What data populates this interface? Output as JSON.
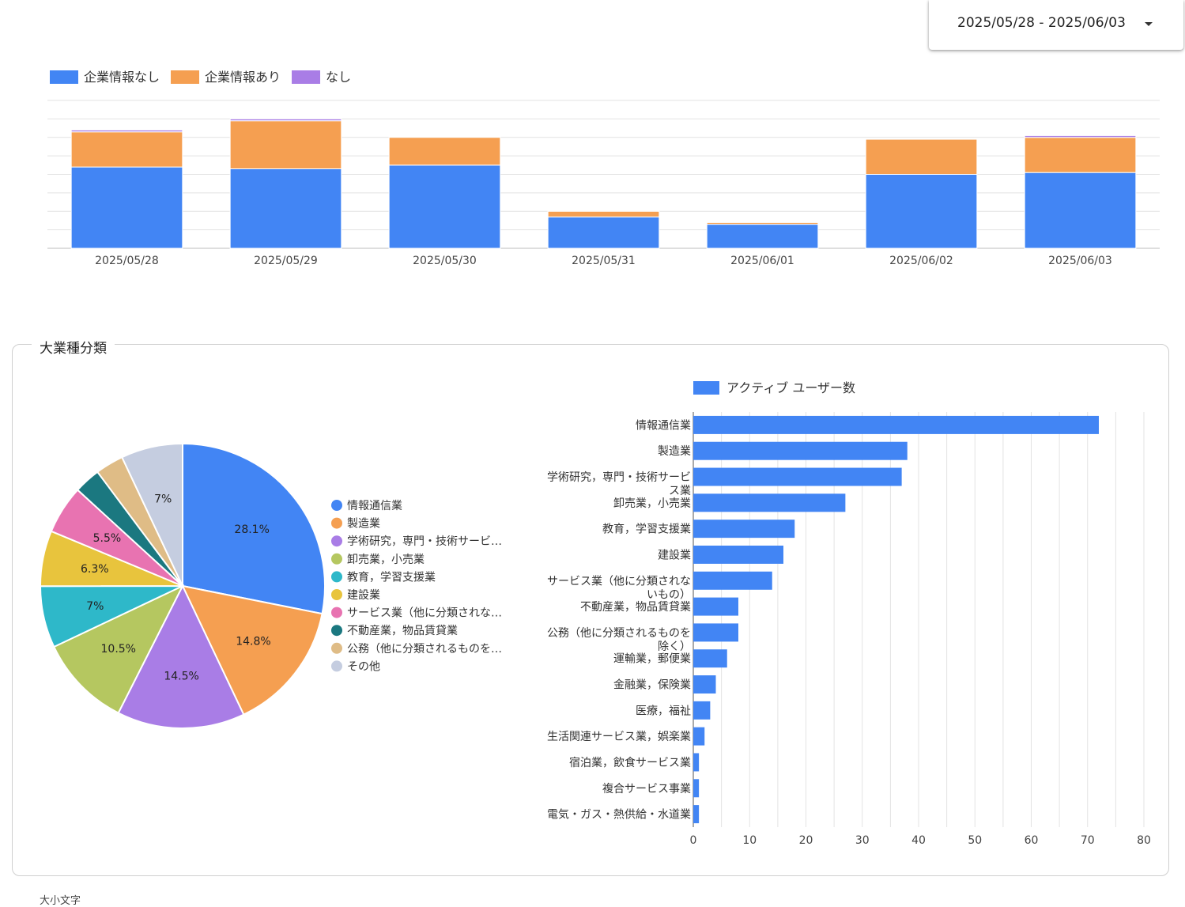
{
  "header": {
    "date_range": "2025/05/28 - 2025/06/03"
  },
  "colors": {
    "blue": "#4285f4",
    "orange": "#f59f51",
    "purple": "#a97de6",
    "grid": "#e3e3e3",
    "axis": "#bdbdbd"
  },
  "section": {
    "title": "大業種分類",
    "bottom_cut_text": "大小文字"
  },
  "chart_data": [
    {
      "type": "bar",
      "stacked": true,
      "legend_position": "top-left",
      "grid": true,
      "categories": [
        "2025/05/28",
        "2025/05/29",
        "2025/05/30",
        "2025/05/31",
        "2025/06/01",
        "2025/06/02",
        "2025/06/03"
      ],
      "ylim": [
        0,
        80
      ],
      "series": [
        {
          "name": "企業情報なし",
          "color": "#4285f4",
          "values": [
            44,
            43,
            45,
            17,
            13,
            40,
            41
          ]
        },
        {
          "name": "企業情報あり",
          "color": "#f59f51",
          "values": [
            19,
            26,
            15,
            3,
            1,
            19,
            19
          ]
        },
        {
          "name": "なし",
          "color": "#a97de6",
          "values": [
            1,
            1,
            0,
            0,
            0.3,
            0,
            1
          ]
        }
      ]
    },
    {
      "type": "pie",
      "legend_position": "right",
      "slices": [
        {
          "label": "情報通信業",
          "legend": "情報通信業",
          "value": 28.1,
          "display": "28.1%",
          "color": "#4285f4"
        },
        {
          "label": "製造業",
          "legend": "製造業",
          "value": 14.8,
          "display": "14.8%",
          "color": "#f59f51"
        },
        {
          "label": "学術研究，専門・技術サービス業",
          "legend": "学術研究，専門・技術サービ…",
          "value": 14.5,
          "display": "14.5%",
          "color": "#a97de6"
        },
        {
          "label": "卸売業，小売業",
          "legend": "卸売業，小売業",
          "value": 10.5,
          "display": "10.5%",
          "color": "#b5c760"
        },
        {
          "label": "教育，学習支援業",
          "legend": "教育，学習支援業",
          "value": 7,
          "display": "7%",
          "color": "#2eb8c9"
        },
        {
          "label": "建設業",
          "legend": "建設業",
          "value": 6.3,
          "display": "6.3%",
          "color": "#e8c43d"
        },
        {
          "label": "サービス業（他に分類されないもの）",
          "legend": "サービス業（他に分類されな…",
          "value": 5.5,
          "display": "5.5%",
          "color": "#e873b1"
        },
        {
          "label": "不動産業，物品賃貸業",
          "legend": "不動産業，物品賃貸業",
          "value": 3,
          "display": "",
          "color": "#1b7880"
        },
        {
          "label": "公務（他に分類されるものを除く）",
          "legend": "公務（他に分類されるものを…",
          "value": 3.2,
          "display": "",
          "color": "#dfbc86"
        },
        {
          "label": "その他",
          "legend": "その他",
          "value": 7,
          "display": "7%",
          "color": "#c5cde0"
        }
      ]
    },
    {
      "type": "bar",
      "orientation": "horizontal",
      "legend_position": "top",
      "grid": true,
      "series_name": "アクティブ ユーザー数",
      "color": "#4285f4",
      "xlim": [
        0,
        80
      ],
      "xticks": [
        0,
        10,
        20,
        30,
        40,
        50,
        60,
        70,
        80
      ],
      "categories": [
        [
          "情報通信業"
        ],
        [
          "製造業"
        ],
        [
          "学術研究，専門・技術サービ",
          "ス業"
        ],
        [
          "卸売業，小売業"
        ],
        [
          "教育，学習支援業"
        ],
        [
          "建設業"
        ],
        [
          "サービス業（他に分類されな",
          "いもの）"
        ],
        [
          "不動産業，物品賃貸業"
        ],
        [
          "公務（他に分類されるものを",
          "除く）"
        ],
        [
          "運輸業，郵便業"
        ],
        [
          "金融業，保険業"
        ],
        [
          "医療，福祉"
        ],
        [
          "生活関連サービス業，娯楽業"
        ],
        [
          "宿泊業，飲食サービス業"
        ],
        [
          "複合サービス事業"
        ],
        [
          "電気・ガス・熱供給・水道業"
        ]
      ],
      "values": [
        72,
        38,
        37,
        27,
        18,
        16,
        14,
        8,
        8,
        6,
        4,
        3,
        2,
        1,
        1,
        1
      ]
    }
  ]
}
